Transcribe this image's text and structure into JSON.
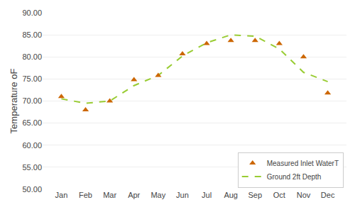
{
  "chart_data": {
    "type": "line",
    "categories": [
      "Jan",
      "Feb",
      "Mar",
      "Apr",
      "May",
      "Jun",
      "Jul",
      "Aug",
      "Sep",
      "Oct",
      "Nov",
      "Dec"
    ],
    "series": [
      {
        "name": "Ground 2ft Depth",
        "type": "line",
        "color": "#99cc33",
        "line_style": "dash",
        "values": [
          70.5,
          69.5,
          70.0,
          73.5,
          75.8,
          80.2,
          83.2,
          85.0,
          84.7,
          81.8,
          76.5,
          74.4
        ]
      },
      {
        "name": "Measured Inlet WaterT",
        "type": "scatter",
        "color": "#cc6600",
        "marker": "triangle-up",
        "values": [
          71.0,
          68.0,
          70.0,
          74.8,
          75.8,
          80.7,
          83.0,
          83.7,
          83.7,
          83.0,
          80.0,
          71.8
        ]
      }
    ],
    "ylabel": "Temperature oF",
    "ylim": [
      50.0,
      90.0
    ],
    "yticks": [
      {
        "value": 50.0,
        "label": "50.00"
      },
      {
        "value": 55.0,
        "label": "55.00"
      },
      {
        "value": 60.0,
        "label": "60.00"
      },
      {
        "value": 65.0,
        "label": "65.00"
      },
      {
        "value": 70.0,
        "label": "70.00"
      },
      {
        "value": 75.0,
        "label": "75.00"
      },
      {
        "value": 80.0,
        "label": "80.00"
      },
      {
        "value": 85.0,
        "label": "85.00"
      },
      {
        "value": 90.0,
        "label": "90.00"
      }
    ],
    "grid": true,
    "legend": "lower right"
  }
}
